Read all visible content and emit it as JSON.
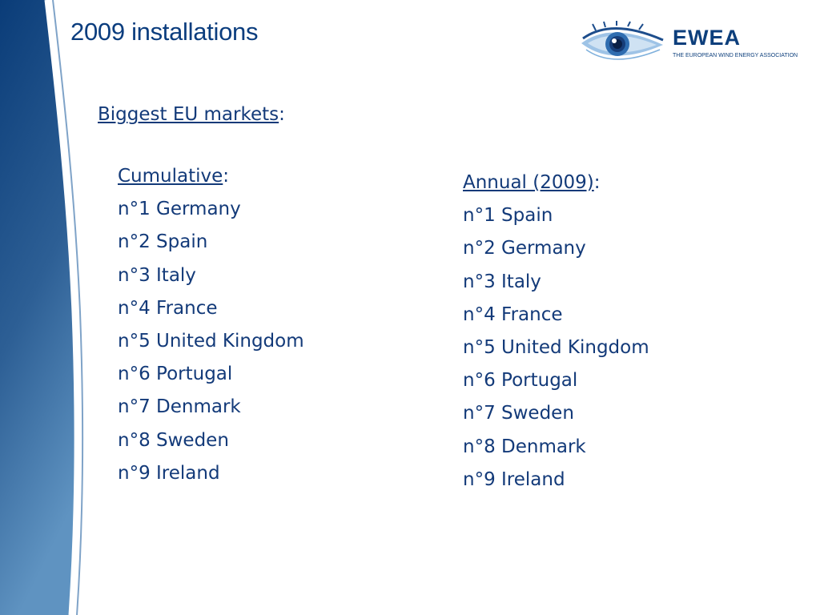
{
  "slide": {
    "title": "2009 installations"
  },
  "logo": {
    "name": "EWEA",
    "tagline": "THE EUROPEAN WIND ENERGY ASSOCIATION"
  },
  "content": {
    "heading": "Biggest EU markets",
    "heading_suffix": ":",
    "cumulative": {
      "label": "Cumulative",
      "suffix": ":",
      "items": [
        "n°1 Germany",
        "n°2 Spain",
        "n°3 Italy",
        "n°4 France",
        "n°5 United Kingdom",
        "n°6 Portugal",
        "n°7 Denmark",
        "n°8 Sweden",
        "n°9 Ireland"
      ]
    },
    "annual": {
      "label": "Annual (2009)",
      "suffix": ":",
      "items": [
        "n°1 Spain",
        "n°2 Germany",
        "n°3 Italy",
        "n°4 France",
        "n°5 United Kingdom",
        "n°6 Portugal",
        "n°7 Sweden",
        "n°8 Denmark",
        "n°9 Ireland"
      ]
    }
  },
  "colors": {
    "title": "#0b3d7e",
    "text": "#133a79",
    "stripe_top": "#0a3c78",
    "stripe_bottom": "#5f93c1"
  }
}
